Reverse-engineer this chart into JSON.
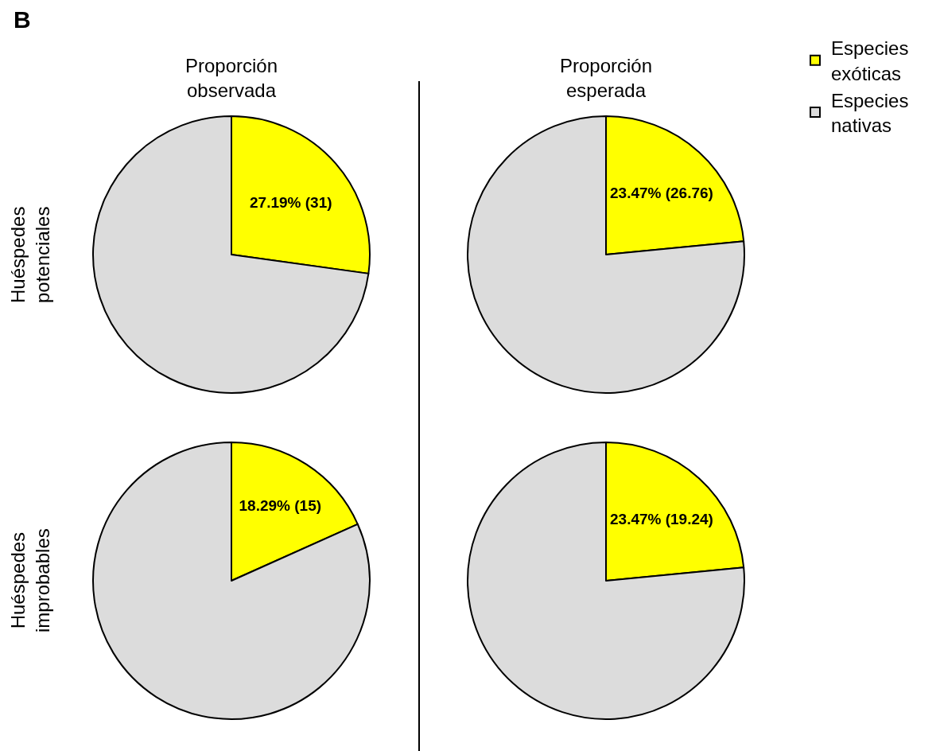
{
  "chart_data": [
    {
      "type": "pie",
      "title": "Proporción observada",
      "ylabel": "Huéspedes potenciales",
      "annotations": [
        "B"
      ],
      "legend": "top right",
      "categories": [
        "Especies exóticas",
        "Especies nativas"
      ],
      "values": [
        27.19,
        72.81
      ],
      "colors": [
        "#ffff00",
        "#dcdcdc"
      ],
      "value_labels": [
        "27.19% (31)",
        null
      ]
    },
    {
      "type": "pie",
      "title": "Proporción esperada",
      "categories": [
        null,
        null
      ],
      "values": [
        23.47,
        76.53
      ],
      "colors": [
        "#ffff00",
        "#dcdcdc"
      ],
      "value_labels": [
        "23.47% (26.76)",
        null
      ]
    },
    {
      "type": "pie",
      "ylabel": "Huéspedes improbables",
      "categories": [
        null,
        null
      ],
      "values": [
        18.29,
        81.71
      ],
      "colors": [
        "#ffff00",
        "#dcdcdc"
      ],
      "value_labels": [
        "18.29% (15)",
        null
      ]
    },
    {
      "type": "pie",
      "categories": [
        null,
        null
      ],
      "values": [
        23.47,
        76.53
      ],
      "colors": [
        "#ffff00",
        "#dcdcdc"
      ],
      "value_labels": [
        "23.47% (19.24)",
        null
      ]
    }
  ]
}
